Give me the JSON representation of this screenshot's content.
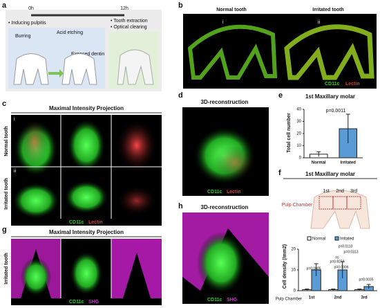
{
  "a": {
    "label": "a",
    "start": "0h",
    "end": "12h",
    "step1": "• Inducing pulpitis",
    "burring": "Burring",
    "etching": "Acid etching",
    "dentin": "Exposed dentin",
    "step2": "• Tooth extraction",
    "step3": "• Optical clearing"
  },
  "b": {
    "label": "b",
    "normal": "Normal tooth",
    "irritated": "Irritated tooth",
    "inset1": "i",
    "inset2": "ii",
    "marker1": "CD11c",
    "marker2": "Lectin"
  },
  "c": {
    "label": "c",
    "title": "Maximal Intensity Projection",
    "row1": "Normal tooth",
    "row2": "Irritated tooth",
    "inset1": "i",
    "inset2": "ii",
    "marker1": "CD11c",
    "marker2": "Lectin"
  },
  "d": {
    "label": "d",
    "title": "3D-reconstruction",
    "marker1": "CD11c",
    "marker2": "Lectin"
  },
  "e": {
    "label": "e",
    "title": "1st Maxillary molar",
    "chart": {
      "type": "bar",
      "ylabel": "Total cell number",
      "categories": [
        "Normal",
        "Irritated"
      ],
      "values": [
        3,
        24
      ],
      "errors": [
        2,
        12
      ],
      "colors": [
        "#ffffff",
        "#5b9bd5"
      ],
      "ylim": [
        0,
        40
      ],
      "yticks": [
        0,
        10,
        20,
        30,
        40
      ],
      "annotation": "p=0.0011"
    }
  },
  "f": {
    "label": "f",
    "title": "1st Maxillary molar",
    "pulp": "Pulp Chamber",
    "regions": [
      "1st",
      "2nd",
      "3rd"
    ],
    "chart": {
      "type": "bar",
      "ylabel": "Cell density (/mm2)",
      "xlabel": "Pulp Chamber",
      "categories": [
        "1st",
        "2nd",
        "3rd"
      ],
      "series": [
        {
          "name": "Normal",
          "color": "#ffffff",
          "values": [
            0.5,
            0.5,
            0.5
          ],
          "errors": [
            0.3,
            0.3,
            0.3
          ]
        },
        {
          "name": "Irritated",
          "color": "#5b9bd5",
          "values": [
            10,
            10,
            2
          ],
          "errors": [
            3,
            4,
            1
          ]
        }
      ],
      "ylim": [
        0,
        20
      ],
      "yticks": [
        0,
        10,
        20
      ],
      "annotations": [
        "p=0.0005",
        "ns",
        "p=0.8274",
        "p=0.0006",
        "p=0.0113",
        "p=0.0313",
        "p=0.0035"
      ]
    }
  },
  "g": {
    "label": "g",
    "title": "Maximal Intensity Projection",
    "row": "Irritated tooth",
    "marker1": "CD11c",
    "marker2": "SHG"
  },
  "h": {
    "label": "h",
    "title": "3D-reconstruction",
    "marker1": "CD11c",
    "marker2": "SHG"
  }
}
